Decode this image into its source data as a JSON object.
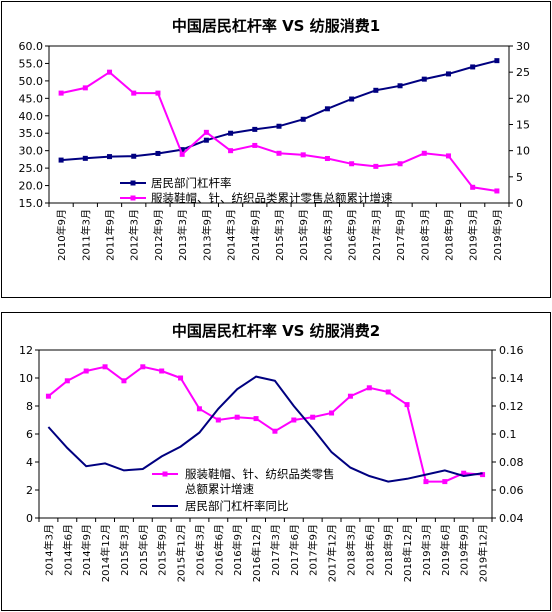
{
  "chart_data": [
    {
      "type": "line",
      "title": "中国居民杠杆率 VS 纺服消费1",
      "x": [
        "2010年9月",
        "2011年3月",
        "2011年9月",
        "2012年3月",
        "2012年9月",
        "2013年3月",
        "2013年9月",
        "2014年3月",
        "2014年9月",
        "2015年3月",
        "2015年9月",
        "2016年3月",
        "2016年9月",
        "2017年3月",
        "2017年9月",
        "2018年3月",
        "2018年9月",
        "2019年3月",
        "2019年9月"
      ],
      "ylim_left": [
        15.0,
        60.0
      ],
      "yticks_left": [
        "15.0",
        "20.0",
        "25.0",
        "30.0",
        "35.0",
        "40.0",
        "45.0",
        "50.0",
        "55.0",
        "60.0"
      ],
      "ylim_right": [
        0,
        30
      ],
      "yticks_right": [
        "0",
        "5",
        "10",
        "15",
        "20",
        "25",
        "30"
      ],
      "legend": "center-left",
      "series": [
        {
          "name": "居民部门杠杆率",
          "axis": "left",
          "color": "#000080",
          "marker": "square",
          "values": [
            27.3,
            27.8,
            28.3,
            28.4,
            29.2,
            30.3,
            33.0,
            35.0,
            36.1,
            37.0,
            39.0,
            42.0,
            44.8,
            47.3,
            48.6,
            50.5,
            52.0,
            54.0,
            55.8
          ]
        },
        {
          "name": "服装鞋帽、针、纺织品类累计零售总额累计增速",
          "axis": "right",
          "color": "#ff00ff",
          "marker": "square",
          "values": [
            21.0,
            22.0,
            25.0,
            21.0,
            21.0,
            9.3,
            13.5,
            10.0,
            11.0,
            9.5,
            9.2,
            8.5,
            7.5,
            7.0,
            7.5,
            9.5,
            9.0,
            3.0,
            2.3
          ]
        }
      ]
    },
    {
      "type": "line",
      "title": "中国居民杠杆率 VS 纺服消费2",
      "x": [
        "2014年3月",
        "2014年6月",
        "2014年9月",
        "2014年12月",
        "2015年3月",
        "2015年6月",
        "2015年9月",
        "2015年12月",
        "2016年3月",
        "2016年6月",
        "2016年9月",
        "2016年12月",
        "2017年3月",
        "2017年6月",
        "2017年9月",
        "2017年12月",
        "2018年3月",
        "2018年6月",
        "2018年9月",
        "2018年12月",
        "2019年3月",
        "2019年6月",
        "2019年9月",
        "2019年12月"
      ],
      "ylim_left": [
        0,
        12
      ],
      "yticks_left": [
        "0",
        "2",
        "4",
        "6",
        "8",
        "10",
        "12"
      ],
      "ylim_right": [
        0.04,
        0.16
      ],
      "yticks_right": [
        "0.04",
        "0.06",
        "0.08",
        "0.1",
        "0.12",
        "0.14",
        "0.16"
      ],
      "legend": "bottom-center",
      "series": [
        {
          "name": "服装鞋帽、针、纺织品类零售总额累计增速",
          "axis": "left",
          "color": "#ff00ff",
          "marker": "square",
          "values": [
            8.7,
            9.8,
            10.5,
            10.8,
            9.8,
            10.8,
            10.5,
            10.0,
            7.8,
            7.0,
            7.2,
            7.1,
            6.2,
            7.0,
            7.2,
            7.5,
            8.7,
            9.3,
            9.0,
            8.1,
            2.6,
            2.6,
            3.2,
            3.1
          ]
        },
        {
          "name": "居民部门杠杆率同比",
          "axis": "right",
          "color": "#000080",
          "marker": "none",
          "values": [
            0.105,
            0.09,
            0.077,
            0.079,
            0.074,
            0.075,
            0.084,
            0.091,
            0.101,
            0.118,
            0.132,
            0.141,
            0.138,
            0.12,
            0.104,
            0.087,
            0.076,
            0.07,
            0.066,
            0.068,
            0.071,
            0.074,
            0.07,
            0.072
          ]
        }
      ]
    }
  ]
}
